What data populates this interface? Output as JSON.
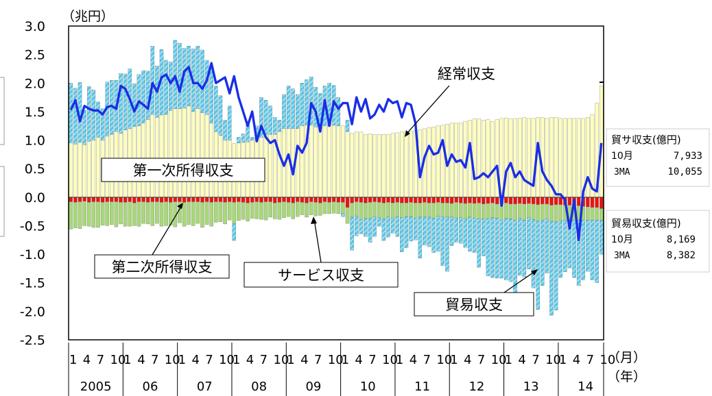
{
  "chart_data": {
    "type": "bar",
    "unit_label": "（兆円）",
    "ylim": [
      -2.5,
      3.0
    ],
    "y_ticks": [
      "3.0",
      "2.5",
      "2.0",
      "1.5",
      "1.0",
      "0.5",
      "0.0",
      "-0.5",
      "-1.0",
      "-1.5",
      "-2.0",
      "-2.5"
    ],
    "x_month_axis_label": "（月）",
    "x_year_axis_label": "（年）",
    "year_labels": [
      "2005",
      "06",
      "07",
      "08",
      "09",
      "10",
      "11",
      "12",
      "13",
      "14"
    ],
    "month_tick_labels": [
      "1",
      "4",
      "7",
      "10"
    ],
    "grid": false,
    "months_count": 118,
    "start": "2005-01",
    "series": [
      {
        "name": "第一次所得収支",
        "kind": "stacked-bar",
        "color": "#ffffc0",
        "values": [
          0.95,
          0.93,
          0.96,
          0.92,
          0.98,
          1.0,
          1.05,
          1.0,
          1.07,
          1.1,
          1.15,
          1.12,
          1.18,
          1.2,
          1.24,
          1.25,
          1.3,
          1.36,
          1.45,
          1.4,
          1.44,
          1.45,
          1.52,
          1.55,
          1.55,
          1.56,
          1.6,
          1.5,
          1.55,
          1.48,
          1.45,
          1.3,
          1.15,
          1.08,
          1.0,
          1.0,
          0.94,
          0.95,
          0.96,
          0.97,
          1.0,
          1.0,
          1.05,
          1.1,
          1.1,
          1.1,
          1.15,
          1.2,
          1.2,
          1.2,
          1.2,
          1.25,
          1.26,
          1.26,
          1.23,
          1.22,
          1.25,
          1.25,
          1.26,
          1.25,
          1.25,
          1.15,
          1.12,
          1.15,
          1.14,
          1.1,
          1.11,
          1.1,
          1.1,
          1.1,
          1.1,
          1.12,
          1.13,
          1.15,
          1.15,
          1.16,
          1.17,
          1.18,
          1.2,
          1.22,
          1.23,
          1.25,
          1.26,
          1.28,
          1.3,
          1.3,
          1.3,
          1.33,
          1.35,
          1.37,
          1.37,
          1.35,
          1.36,
          1.33,
          1.36,
          1.38,
          1.39,
          1.37,
          1.38,
          1.38,
          1.4,
          1.38,
          1.38,
          1.4,
          1.4,
          1.38,
          1.4,
          1.4,
          1.38,
          1.38,
          1.38,
          1.38,
          1.38,
          1.38,
          1.4,
          1.45,
          1.65,
          1.95
        ]
      },
      {
        "name": "貿易収支",
        "kind": "stacked-bar",
        "color": "#5bc8e8",
        "values": [
          1.05,
          0.98,
          1.05,
          0.6,
          0.96,
          0.88,
          0.62,
          0.55,
          0.95,
          0.95,
          0.9,
          1.05,
          0.98,
          1.05,
          0.75,
          0.9,
          0.92,
          0.85,
          1.2,
          0.9,
          1.15,
          0.95,
          0.85,
          1.2,
          1.15,
          1.05,
          1.05,
          1.1,
          1.1,
          1.1,
          0.95,
          0.95,
          0.8,
          0.7,
          0.35,
          0.6,
          -0.3,
          0.1,
          0.15,
          0.3,
          0.05,
          0.25,
          0.7,
          0.6,
          0.5,
          0.3,
          0.2,
          0.6,
          0.75,
          0.7,
          0.6,
          0.75,
          0.8,
          0.85,
          0.7,
          0.6,
          0.7,
          0.75,
          0.7,
          0.5,
          -0.05,
          0.2,
          -0.58,
          -0.35,
          -0.25,
          -0.32,
          -0.42,
          -0.35,
          -0.15,
          -0.38,
          -0.36,
          -0.26,
          -0.35,
          -0.6,
          -0.55,
          -0.43,
          -0.38,
          -0.72,
          -0.5,
          -0.52,
          -0.6,
          -0.62,
          -0.85,
          -0.95,
          -0.5,
          -0.42,
          -0.45,
          -0.5,
          -0.6,
          -0.6,
          -0.85,
          -0.65,
          -1.0,
          -1.05,
          -1.05,
          -1.02,
          -1.08,
          -1.1,
          -1.3,
          -1.0,
          -1.0,
          -0.9,
          -1.2,
          -1.55,
          -1.15,
          -0.95,
          -1.65,
          -1.55,
          -1.0,
          -0.9,
          -0.85,
          -1.0,
          -1.15,
          -1.05,
          -0.9,
          -1.05,
          -1.1,
          -0.6
        ]
      },
      {
        "name": "サービス収支",
        "kind": "stacked-bar",
        "color": "#a8d878",
        "values": [
          -0.48,
          -0.45,
          -0.47,
          -0.43,
          -0.42,
          -0.45,
          -0.45,
          -0.4,
          -0.42,
          -0.4,
          -0.44,
          -0.38,
          -0.42,
          -0.43,
          -0.4,
          -0.43,
          -0.38,
          -0.38,
          -0.42,
          -0.38,
          -0.42,
          -0.42,
          -0.4,
          -0.44,
          -0.37,
          -0.42,
          -0.4,
          -0.42,
          -0.38,
          -0.44,
          -0.4,
          -0.42,
          -0.36,
          -0.35,
          -0.38,
          -0.32,
          -0.37,
          -0.33,
          -0.3,
          -0.32,
          -0.28,
          -0.3,
          -0.3,
          -0.32,
          -0.27,
          -0.28,
          -0.3,
          -0.28,
          -0.25,
          -0.28,
          -0.26,
          -0.22,
          -0.25,
          -0.23,
          -0.24,
          -0.22,
          -0.21,
          -0.2,
          -0.2,
          -0.2,
          -0.2,
          -0.28,
          -0.25,
          -0.25,
          -0.3,
          -0.27,
          -0.28,
          -0.26,
          -0.27,
          -0.28,
          -0.25,
          -0.27,
          -0.25,
          -0.26,
          -0.24,
          -0.25,
          -0.27,
          -0.25,
          -0.25,
          -0.25,
          -0.27,
          -0.24,
          -0.25,
          -0.25,
          -0.24,
          -0.28,
          -0.26,
          -0.27,
          -0.25,
          -0.26,
          -0.28,
          -0.26,
          -0.27,
          -0.26,
          -0.25,
          -0.28,
          -0.27,
          -0.26,
          -0.28,
          -0.26,
          -0.28,
          -0.25,
          -0.27,
          -0.29,
          -0.28,
          -0.26,
          -0.28,
          -0.3,
          -0.28,
          -0.27,
          -0.25,
          -0.26,
          -0.25,
          -0.24,
          -0.23,
          -0.22,
          -0.22,
          -0.2
        ]
      },
      {
        "name": "第二次所得収支",
        "kind": "stacked-bar",
        "color": "#e8150f",
        "values": [
          -0.08,
          -0.09,
          -0.08,
          -0.07,
          -0.09,
          -0.08,
          -0.08,
          -0.09,
          -0.08,
          -0.08,
          -0.08,
          -0.09,
          -0.09,
          -0.08,
          -0.1,
          -0.08,
          -0.08,
          -0.09,
          -0.08,
          -0.08,
          -0.09,
          -0.08,
          -0.09,
          -0.08,
          -0.08,
          -0.09,
          -0.08,
          -0.08,
          -0.08,
          -0.09,
          -0.08,
          -0.09,
          -0.08,
          -0.08,
          -0.09,
          -0.08,
          -0.09,
          -0.08,
          -0.09,
          -0.1,
          -0.09,
          -0.08,
          -0.09,
          -0.08,
          -0.08,
          -0.1,
          -0.09,
          -0.08,
          -0.09,
          -0.1,
          -0.08,
          -0.09,
          -0.1,
          -0.08,
          -0.09,
          -0.1,
          -0.08,
          -0.09,
          -0.08,
          -0.09,
          -0.09,
          -0.18,
          -0.1,
          -0.08,
          -0.09,
          -0.1,
          -0.09,
          -0.08,
          -0.09,
          -0.1,
          -0.09,
          -0.1,
          -0.09,
          -0.1,
          -0.1,
          -0.09,
          -0.1,
          -0.1,
          -0.09,
          -0.1,
          -0.1,
          -0.09,
          -0.1,
          -0.1,
          -0.11,
          -0.09,
          -0.1,
          -0.11,
          -0.1,
          -0.11,
          -0.1,
          -0.12,
          -0.11,
          -0.1,
          -0.12,
          -0.12,
          -0.1,
          -0.12,
          -0.12,
          -0.11,
          -0.12,
          -0.11,
          -0.12,
          -0.13,
          -0.12,
          -0.12,
          -0.14,
          -0.13,
          -0.13,
          -0.14,
          -0.14,
          -0.15,
          -0.15,
          -0.16,
          -0.17,
          -0.18,
          -0.18,
          -0.2
        ]
      },
      {
        "name": "経常収支",
        "kind": "line",
        "color": "#1a2ee6",
        "values": [
          1.53,
          1.7,
          1.33,
          1.6,
          1.55,
          1.52,
          1.52,
          1.45,
          1.58,
          1.6,
          1.55,
          1.95,
          1.9,
          1.72,
          1.5,
          1.68,
          1.62,
          1.55,
          2.0,
          1.85,
          2.1,
          2.15,
          2.0,
          2.12,
          1.85,
          2.2,
          2.28,
          2.0,
          2.0,
          1.9,
          2.05,
          2.35,
          2.0,
          2.05,
          2.1,
          1.82,
          2.12,
          1.75,
          1.5,
          1.25,
          1.5,
          0.98,
          1.25,
          1.05,
          0.95,
          1.0,
          0.75,
          0.55,
          0.75,
          0.4,
          0.9,
          0.78,
          0.95,
          1.65,
          1.5,
          1.15,
          1.7,
          1.25,
          1.68,
          1.55,
          1.65,
          1.65,
          1.28,
          1.75,
          1.5,
          1.72,
          1.38,
          1.45,
          1.62,
          1.5,
          1.72,
          1.65,
          1.68,
          1.4,
          1.65,
          1.62,
          1.3,
          0.35,
          0.7,
          0.9,
          0.75,
          0.78,
          1.0,
          0.55,
          0.75,
          0.62,
          0.65,
          0.52,
          0.95,
          0.32,
          0.35,
          0.42,
          0.35,
          0.45,
          0.55,
          -0.15,
          0.45,
          0.6,
          0.35,
          0.45,
          0.3,
          0.25,
          0.2,
          0.95,
          0.45,
          0.3,
          0.2,
          0.05,
          0.05,
          -0.05,
          -0.55,
          -0.05,
          -0.75,
          0.1,
          0.35,
          0.15,
          0.1,
          0.95
        ]
      }
    ],
    "annotations": {
      "first_income_label": "第一次所得収支",
      "second_income_label": "第二次所得収支",
      "services_label": "サービス収支",
      "trade_label": "貿易収支",
      "current_account_label": "経常収支"
    }
  },
  "side_boxes": {
    "upper": {
      "title": "貿サ収支(億円)",
      "row1_label": "10月",
      "row1_value": "7,933",
      "row2_label": "3MA",
      "row2_value": "10,055"
    },
    "lower": {
      "title": "貿易収支(億円)",
      "row1_label": "10月",
      "row1_value": "8,169",
      "row2_label": "3MA",
      "row2_value": "8,382"
    }
  }
}
